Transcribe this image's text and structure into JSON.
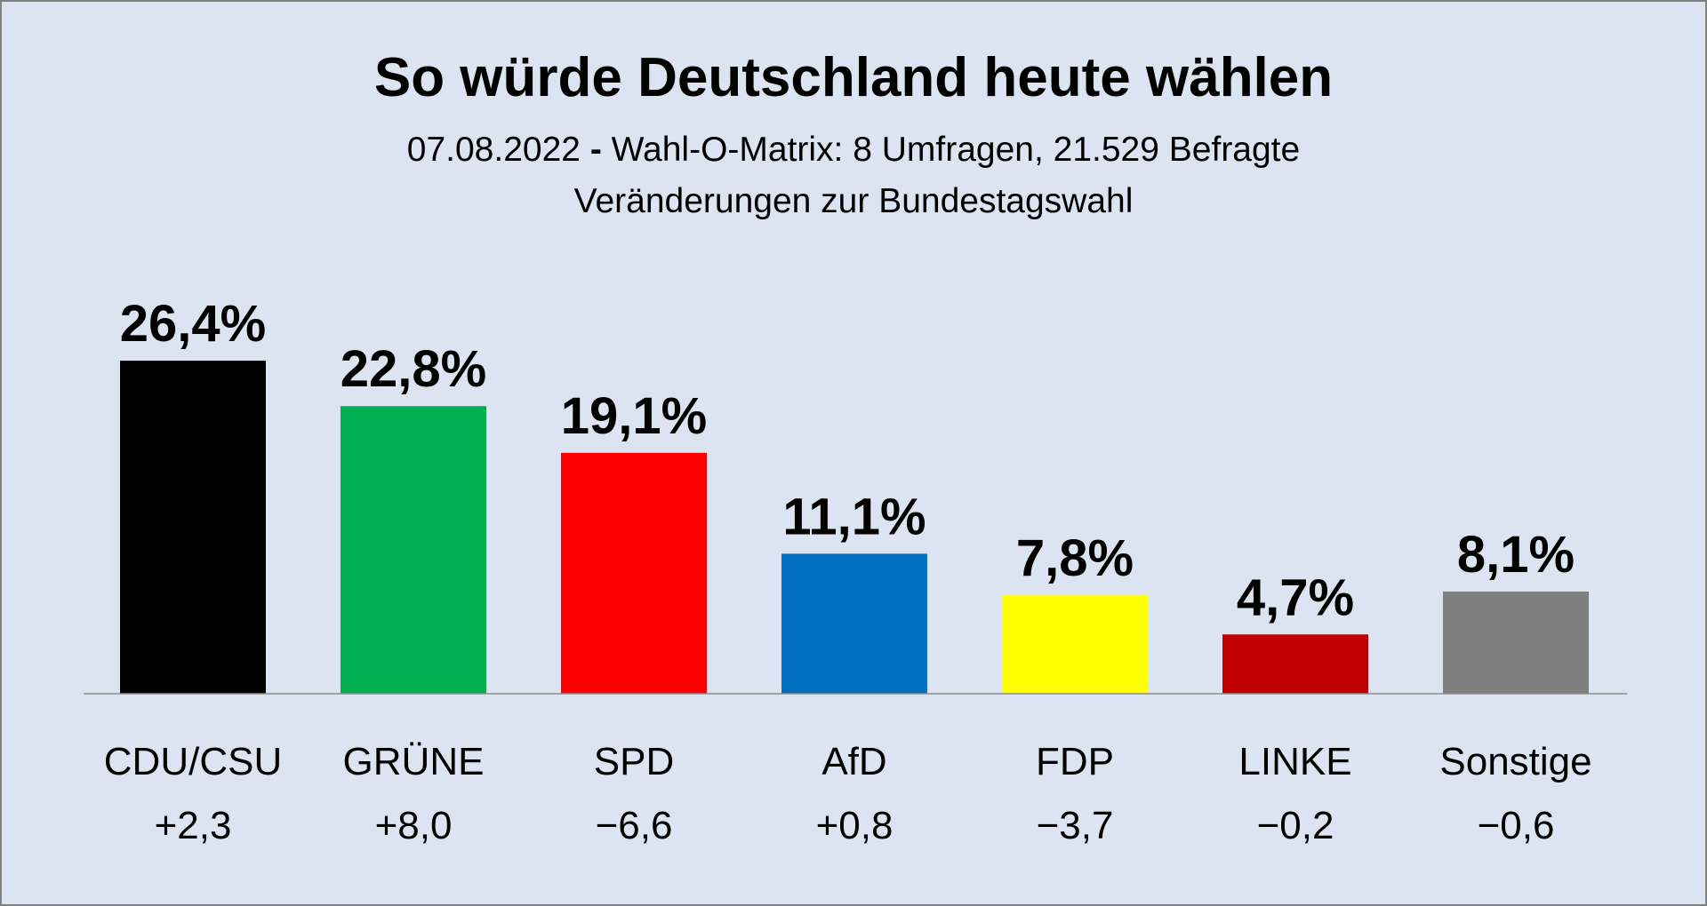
{
  "title": "So würde Deutschland heute wählen",
  "subtitle": {
    "date": "07.08.2022",
    "separator": "-",
    "source": "Wahl-O-Matrix: 8 Umfragen, 21.529 Befragte",
    "line2": "Veränderungen zur Bundestagswahl"
  },
  "chart_data": {
    "type": "bar",
    "title": "So würde Deutschland heute wählen",
    "categories": [
      "CDU/CSU",
      "GRÜNE",
      "SPD",
      "AfD",
      "FDP",
      "LINKE",
      "Sonstige"
    ],
    "values": [
      26.4,
      22.8,
      19.1,
      11.1,
      7.8,
      4.7,
      8.1
    ],
    "value_labels": [
      "26,4%",
      "22,8%",
      "19,1%",
      "11,1%",
      "7,8%",
      "4,7%",
      "8,1%"
    ],
    "changes": [
      "+2,3",
      "+8,0",
      "−6,6",
      "+0,8",
      "−3,7",
      "−0,2",
      "−0,6"
    ],
    "colors": [
      "#000000",
      "#00b050",
      "#ff0000",
      "#0070c0",
      "#ffff00",
      "#c00000",
      "#7f7f7f"
    ],
    "xlabel": "",
    "ylabel": "",
    "ylim": [
      0,
      30
    ],
    "grid": false,
    "legend": "none"
  }
}
